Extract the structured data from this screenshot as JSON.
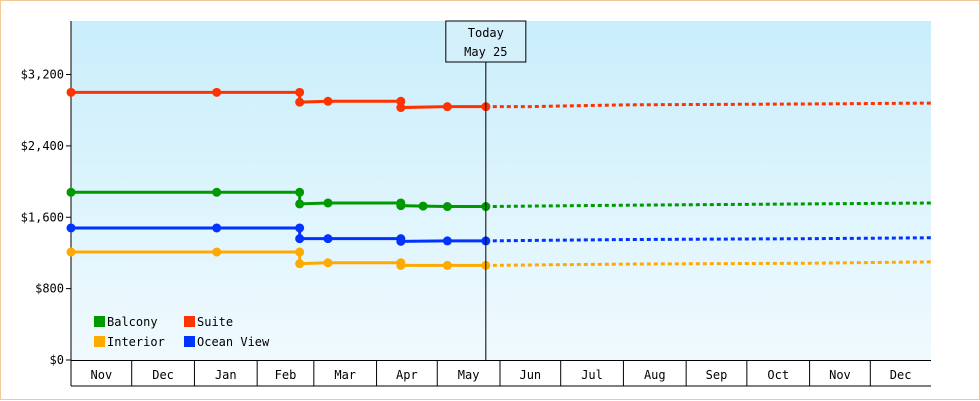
{
  "chart_data": {
    "type": "line",
    "title": "",
    "xlabel": "",
    "ylabel": "",
    "ylim": [
      0,
      3800
    ],
    "y_ticks": [
      {
        "value": 0,
        "label": "$0"
      },
      {
        "value": 800,
        "label": "$800"
      },
      {
        "value": 1600,
        "label": "$1,600"
      },
      {
        "value": 2400,
        "label": "$2,400"
      },
      {
        "value": 3200,
        "label": "$3,200"
      }
    ],
    "x_range": [
      "2022-11-01",
      "2023-12-31"
    ],
    "months": [
      {
        "label": "Nov",
        "start": "2022-11-01"
      },
      {
        "label": "Dec",
        "start": "2022-12-01"
      },
      {
        "label": "Jan",
        "start": "2023-01-01"
      },
      {
        "label": "Feb",
        "start": "2023-02-01"
      },
      {
        "label": "Mar",
        "start": "2023-03-01"
      },
      {
        "label": "Apr",
        "start": "2023-04-01"
      },
      {
        "label": "May",
        "start": "2023-05-01"
      },
      {
        "label": "Jun",
        "start": "2023-06-01"
      },
      {
        "label": "Jul",
        "start": "2023-07-01"
      },
      {
        "label": "Aug",
        "start": "2023-08-01"
      },
      {
        "label": "Sep",
        "start": "2023-09-01"
      },
      {
        "label": "Oct",
        "start": "2023-10-01"
      },
      {
        "label": "Nov",
        "start": "2023-11-01"
      },
      {
        "label": "Dec",
        "start": "2023-12-01"
      }
    ],
    "today": {
      "line1": "Today",
      "line2": "May 25",
      "date": "2023-05-25"
    },
    "grid": false,
    "legend_position": "bottom-left",
    "series": [
      {
        "name": "Suite",
        "color": "#ff3300",
        "points": [
          {
            "x": "2022-11-01",
            "y": 3000
          },
          {
            "x": "2023-01-12",
            "y": 3000
          },
          {
            "x": "2023-02-22",
            "y": 3000
          },
          {
            "x": "2023-02-22",
            "y": 2890
          },
          {
            "x": "2023-03-08",
            "y": 2900
          },
          {
            "x": "2023-04-13",
            "y": 2900
          },
          {
            "x": "2023-04-13",
            "y": 2830
          },
          {
            "x": "2023-05-06",
            "y": 2840
          },
          {
            "x": "2023-05-25",
            "y": 2840
          }
        ],
        "forecast": [
          {
            "x": "2023-05-25",
            "y": 2840
          },
          {
            "x": "2023-06-15",
            "y": 2840
          },
          {
            "x": "2023-08-01",
            "y": 2860
          },
          {
            "x": "2023-11-01",
            "y": 2870
          },
          {
            "x": "2023-12-31",
            "y": 2880
          }
        ]
      },
      {
        "name": "Balcony",
        "color": "#009900",
        "points": [
          {
            "x": "2022-11-01",
            "y": 1880
          },
          {
            "x": "2023-01-12",
            "y": 1880
          },
          {
            "x": "2023-02-22",
            "y": 1880
          },
          {
            "x": "2023-02-22",
            "y": 1750
          },
          {
            "x": "2023-03-08",
            "y": 1760
          },
          {
            "x": "2023-04-13",
            "y": 1760
          },
          {
            "x": "2023-04-13",
            "y": 1730
          },
          {
            "x": "2023-04-24",
            "y": 1725
          },
          {
            "x": "2023-05-06",
            "y": 1720
          },
          {
            "x": "2023-05-25",
            "y": 1720
          }
        ],
        "forecast": [
          {
            "x": "2023-05-25",
            "y": 1720
          },
          {
            "x": "2023-06-15",
            "y": 1725
          },
          {
            "x": "2023-08-01",
            "y": 1735
          },
          {
            "x": "2023-11-01",
            "y": 1750
          },
          {
            "x": "2023-12-31",
            "y": 1760
          }
        ]
      },
      {
        "name": "Ocean View",
        "color": "#0033ff",
        "points": [
          {
            "x": "2022-11-01",
            "y": 1480
          },
          {
            "x": "2023-01-12",
            "y": 1480
          },
          {
            "x": "2023-02-22",
            "y": 1480
          },
          {
            "x": "2023-02-22",
            "y": 1360
          },
          {
            "x": "2023-03-08",
            "y": 1360
          },
          {
            "x": "2023-04-13",
            "y": 1360
          },
          {
            "x": "2023-04-13",
            "y": 1330
          },
          {
            "x": "2023-05-06",
            "y": 1335
          },
          {
            "x": "2023-05-25",
            "y": 1335
          }
        ],
        "forecast": [
          {
            "x": "2023-05-25",
            "y": 1335
          },
          {
            "x": "2023-06-15",
            "y": 1340
          },
          {
            "x": "2023-08-01",
            "y": 1350
          },
          {
            "x": "2023-11-01",
            "y": 1360
          },
          {
            "x": "2023-12-31",
            "y": 1370
          }
        ]
      },
      {
        "name": "Interior",
        "color": "#ffaa00",
        "points": [
          {
            "x": "2022-11-01",
            "y": 1210
          },
          {
            "x": "2023-01-12",
            "y": 1210
          },
          {
            "x": "2023-02-22",
            "y": 1210
          },
          {
            "x": "2023-02-22",
            "y": 1080
          },
          {
            "x": "2023-03-08",
            "y": 1090
          },
          {
            "x": "2023-04-13",
            "y": 1090
          },
          {
            "x": "2023-04-13",
            "y": 1060
          },
          {
            "x": "2023-05-06",
            "y": 1060
          },
          {
            "x": "2023-05-25",
            "y": 1060
          }
        ],
        "forecast": [
          {
            "x": "2023-05-25",
            "y": 1060
          },
          {
            "x": "2023-06-15",
            "y": 1065
          },
          {
            "x": "2023-08-01",
            "y": 1075
          },
          {
            "x": "2023-11-01",
            "y": 1085
          },
          {
            "x": "2023-12-31",
            "y": 1100
          }
        ]
      }
    ],
    "legend": [
      {
        "name": "Balcony",
        "color": "#009900"
      },
      {
        "name": "Suite",
        "color": "#ff3300"
      },
      {
        "name": "Interior",
        "color": "#ffaa00"
      },
      {
        "name": "Ocean View",
        "color": "#0033ff"
      }
    ]
  }
}
